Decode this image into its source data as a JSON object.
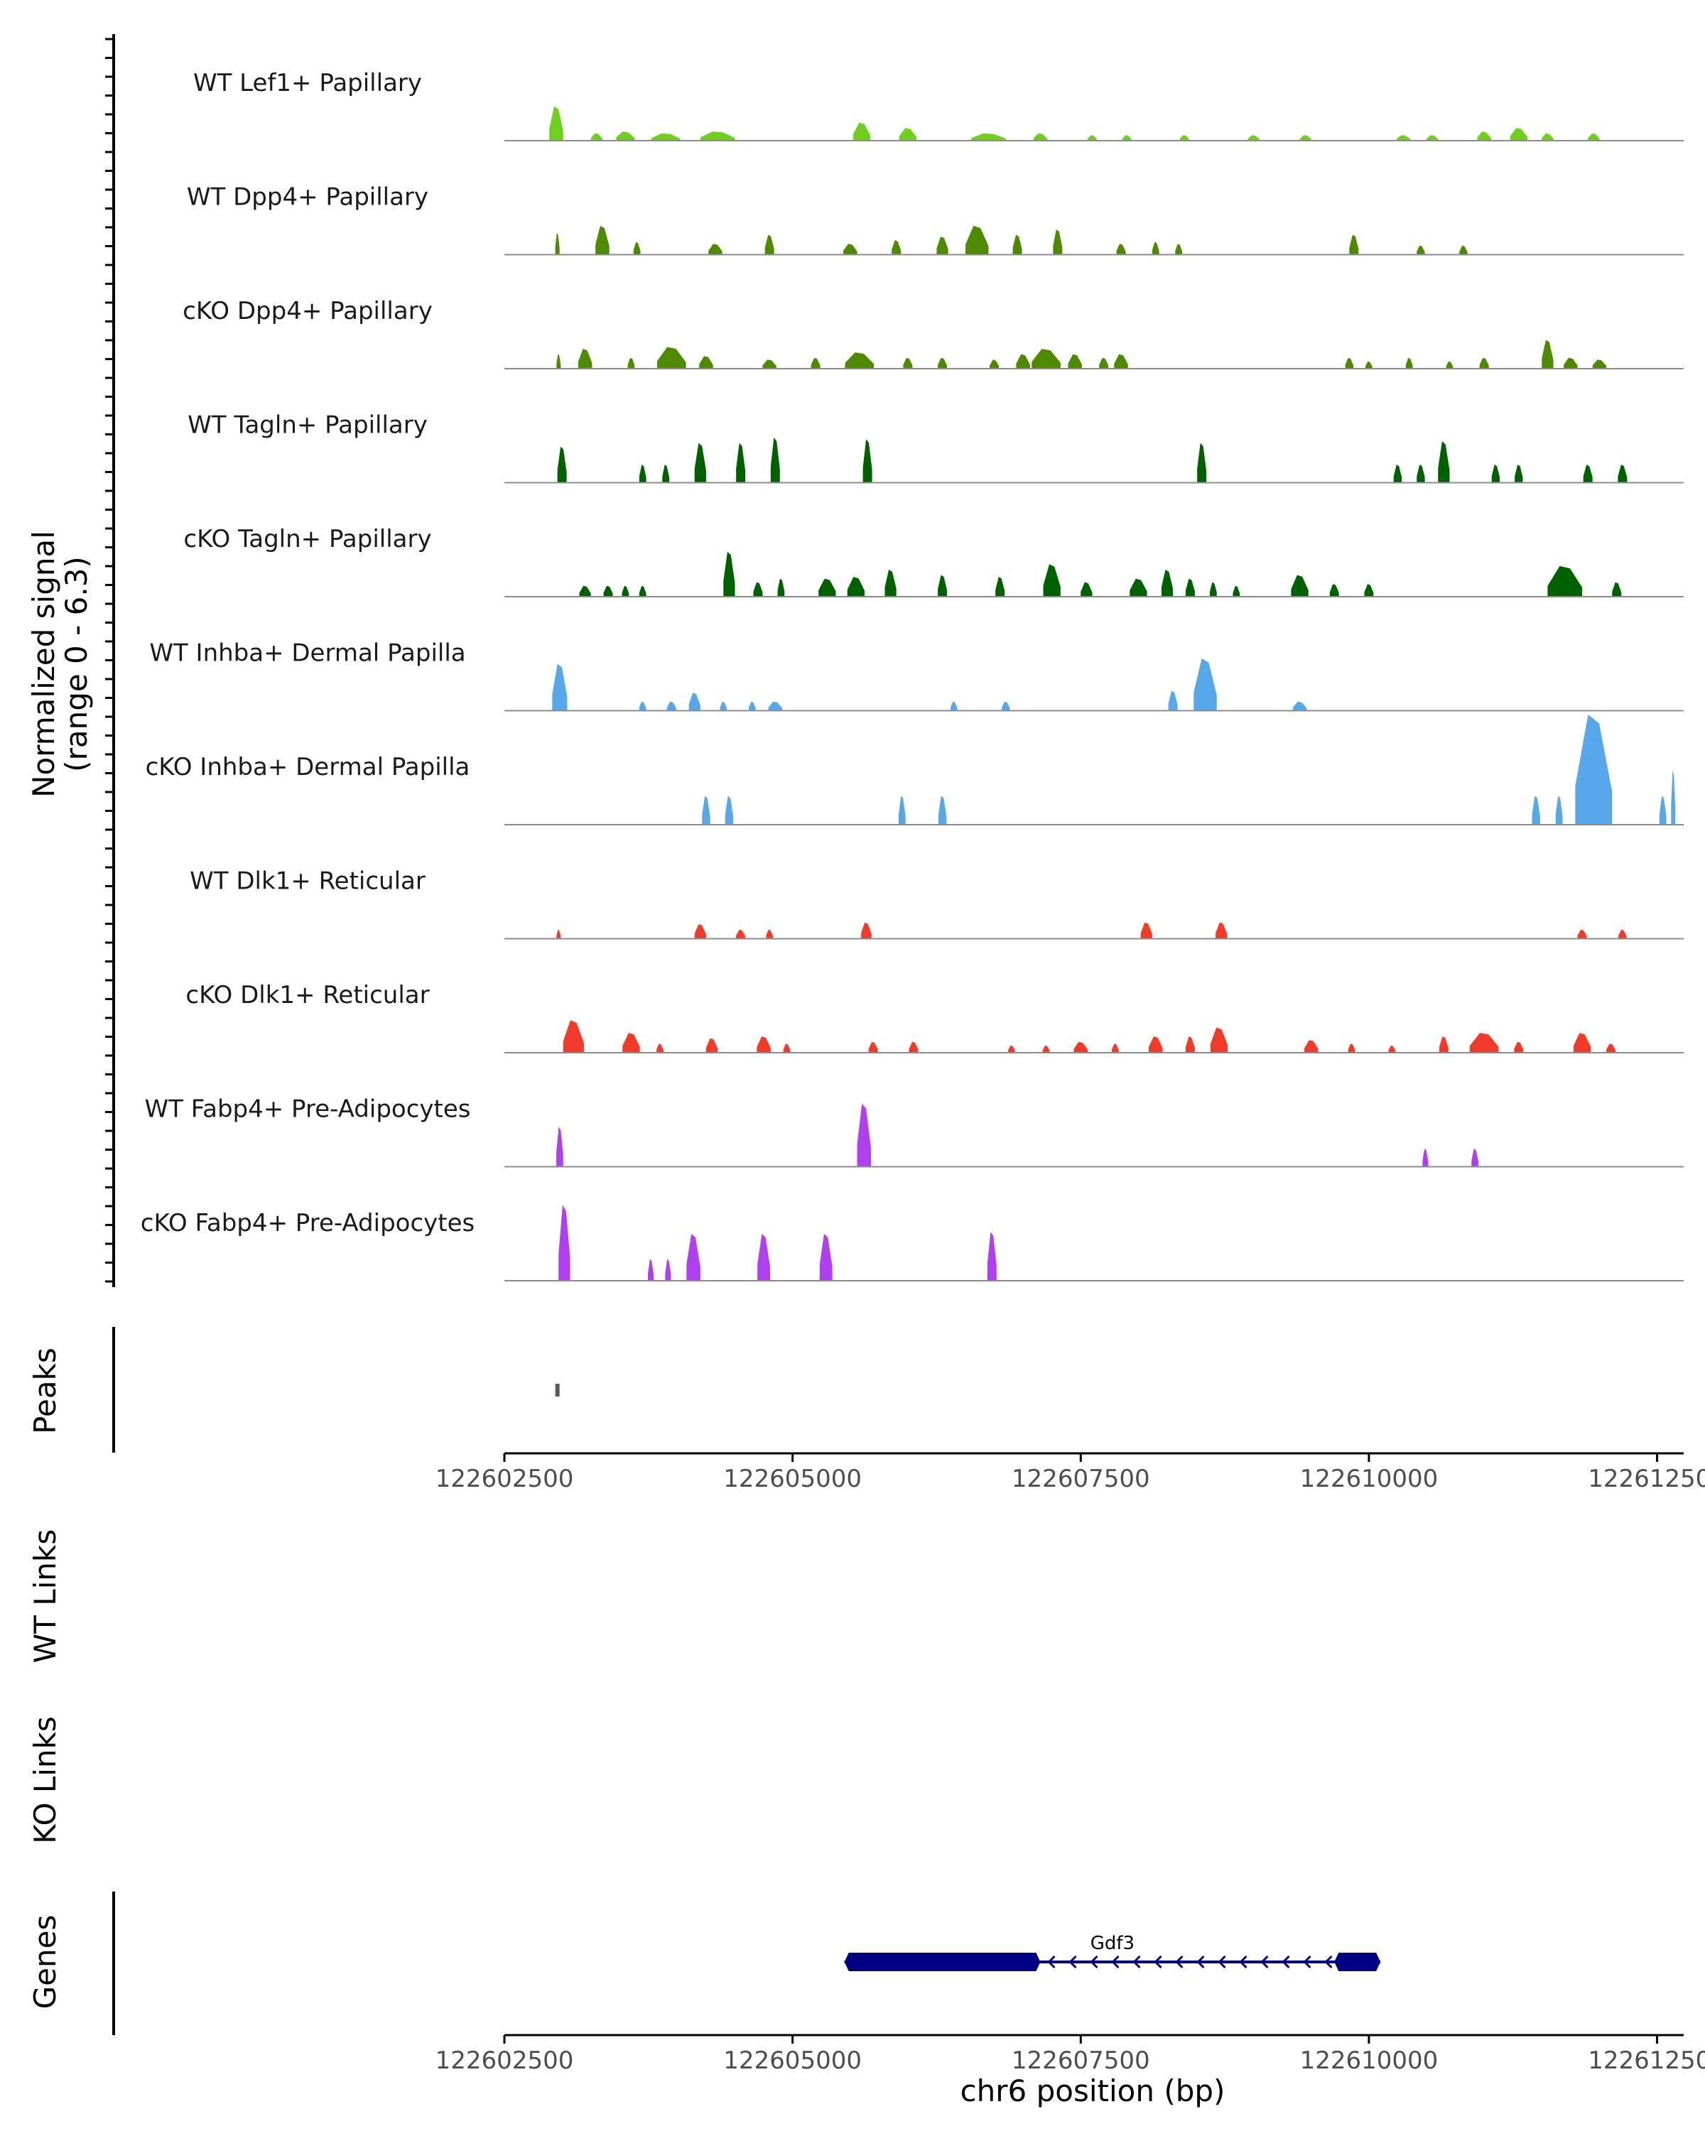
{
  "chart_data": {
    "type": "area",
    "title": "",
    "ylabel": "Normalized signal\n(range 0 - 6.3)",
    "ylim": [
      0,
      6.3
    ],
    "xlabel": "chr6 position (bp)",
    "xlim": [
      122602500,
      122612700
    ],
    "xticks": [
      122602500,
      122605000,
      122607500,
      122610000,
      122612500
    ],
    "xtick_labels": [
      "122602500",
      "122605000",
      "122607500",
      "122610000",
      "122612500"
    ],
    "sections": {
      "peaks": "Peaks",
      "wt_links": "WT Links",
      "ko_links": "KO Links",
      "genes": "Genes"
    },
    "series": [
      {
        "name": "WT Lef1+ Papillary",
        "color": "#6fcf1f",
        "peaks": [
          [
            122602950,
            120,
            1.9
          ],
          [
            122603300,
            100,
            0.4
          ],
          [
            122603550,
            160,
            0.5
          ],
          [
            122603900,
            250,
            0.4
          ],
          [
            122604350,
            300,
            0.5
          ],
          [
            122605600,
            150,
            1.0
          ],
          [
            122606000,
            150,
            0.7
          ],
          [
            122606700,
            300,
            0.4
          ],
          [
            122607150,
            120,
            0.4
          ],
          [
            122607600,
            80,
            0.3
          ],
          [
            122607900,
            80,
            0.3
          ],
          [
            122608400,
            80,
            0.3
          ],
          [
            122609000,
            100,
            0.3
          ],
          [
            122609450,
            100,
            0.3
          ],
          [
            122610300,
            120,
            0.3
          ],
          [
            122610550,
            100,
            0.3
          ],
          [
            122611000,
            120,
            0.5
          ],
          [
            122611300,
            150,
            0.7
          ],
          [
            122611550,
            100,
            0.4
          ],
          [
            122611950,
            100,
            0.4
          ]
        ]
      },
      {
        "name": "WT Dpp4+ Papillary",
        "color": "#4d8a00",
        "peaks": [
          [
            122602960,
            30,
            1.2
          ],
          [
            122603350,
            120,
            1.6
          ],
          [
            122603650,
            60,
            0.7
          ],
          [
            122604330,
            120,
            0.6
          ],
          [
            122604800,
            80,
            1.1
          ],
          [
            122605500,
            120,
            0.6
          ],
          [
            122605900,
            80,
            0.8
          ],
          [
            122606300,
            100,
            1.0
          ],
          [
            122606600,
            200,
            1.6
          ],
          [
            122606950,
            80,
            1.1
          ],
          [
            122607300,
            80,
            1.4
          ],
          [
            122607850,
            80,
            0.6
          ],
          [
            122608150,
            60,
            0.7
          ],
          [
            122608350,
            60,
            0.6
          ],
          [
            122609870,
            80,
            1.1
          ],
          [
            122610450,
            70,
            0.5
          ],
          [
            122610820,
            70,
            0.5
          ]
        ]
      },
      {
        "name": "cKO Dpp4+ Papillary",
        "color": "#4d8a00",
        "peaks": [
          [
            122602970,
            30,
            0.8
          ],
          [
            122603200,
            120,
            1.1
          ],
          [
            122603600,
            60,
            0.6
          ],
          [
            122603950,
            250,
            1.2
          ],
          [
            122604250,
            120,
            0.7
          ],
          [
            122604800,
            120,
            0.5
          ],
          [
            122605200,
            80,
            0.6
          ],
          [
            122605580,
            250,
            0.9
          ],
          [
            122606000,
            80,
            0.6
          ],
          [
            122606300,
            80,
            0.6
          ],
          [
            122606750,
            80,
            0.5
          ],
          [
            122607000,
            120,
            0.8
          ],
          [
            122607200,
            250,
            1.1
          ],
          [
            122607450,
            120,
            0.8
          ],
          [
            122607700,
            80,
            0.6
          ],
          [
            122607850,
            120,
            0.8
          ],
          [
            122609830,
            70,
            0.6
          ],
          [
            122610000,
            60,
            0.4
          ],
          [
            122610350,
            60,
            0.6
          ],
          [
            122610700,
            60,
            0.4
          ],
          [
            122611000,
            80,
            0.6
          ],
          [
            122611550,
            100,
            1.6
          ],
          [
            122611750,
            120,
            0.6
          ],
          [
            122612000,
            120,
            0.5
          ]
        ]
      },
      {
        "name": "WT Tagln+ Papillary",
        "color": "#006100",
        "peaks": [
          [
            122603000,
            80,
            2.0
          ],
          [
            122603700,
            60,
            1.0
          ],
          [
            122603900,
            60,
            1.0
          ],
          [
            122604200,
            100,
            2.2
          ],
          [
            122604550,
            80,
            2.2
          ],
          [
            122604850,
            80,
            2.5
          ],
          [
            122605650,
            80,
            2.4
          ],
          [
            122608550,
            80,
            2.2
          ],
          [
            122610250,
            70,
            1.0
          ],
          [
            122610450,
            70,
            1.0
          ],
          [
            122610650,
            100,
            2.3
          ],
          [
            122611100,
            70,
            1.0
          ],
          [
            122611300,
            70,
            1.0
          ],
          [
            122611900,
            80,
            1.0
          ],
          [
            122612200,
            80,
            1.0
          ]
        ]
      },
      {
        "name": "cKO Tagln+ Papillary",
        "color": "#006100",
        "peaks": [
          [
            122603200,
            100,
            0.6
          ],
          [
            122603400,
            80,
            0.6
          ],
          [
            122603550,
            60,
            0.6
          ],
          [
            122603700,
            60,
            0.6
          ],
          [
            122604450,
            100,
            2.5
          ],
          [
            122604700,
            80,
            0.8
          ],
          [
            122604900,
            60,
            1.0
          ],
          [
            122605300,
            150,
            1.0
          ],
          [
            122605550,
            150,
            1.1
          ],
          [
            122605850,
            100,
            1.5
          ],
          [
            122606300,
            80,
            1.2
          ],
          [
            122606800,
            80,
            1.1
          ],
          [
            122607250,
            150,
            1.8
          ],
          [
            122607550,
            100,
            0.8
          ],
          [
            122608000,
            150,
            1.0
          ],
          [
            122608250,
            100,
            1.5
          ],
          [
            122608450,
            80,
            1.0
          ],
          [
            122608650,
            60,
            0.8
          ],
          [
            122608850,
            60,
            0.6
          ],
          [
            122609400,
            150,
            1.2
          ],
          [
            122609700,
            80,
            0.7
          ],
          [
            122610000,
            80,
            0.7
          ],
          [
            122611700,
            300,
            1.7
          ],
          [
            122612150,
            80,
            0.8
          ]
        ]
      },
      {
        "name": "WT Inhba+ Dermal Papilla",
        "color": "#56a8ea",
        "peaks": [
          [
            122602980,
            130,
            2.6
          ],
          [
            122603700,
            60,
            0.5
          ],
          [
            122603950,
            80,
            0.5
          ],
          [
            122604150,
            100,
            1.0
          ],
          [
            122604400,
            60,
            0.5
          ],
          [
            122604650,
            60,
            0.5
          ],
          [
            122604850,
            120,
            0.5
          ],
          [
            122606400,
            60,
            0.5
          ],
          [
            122606850,
            70,
            0.5
          ],
          [
            122608300,
            80,
            1.1
          ],
          [
            122608580,
            200,
            2.9
          ],
          [
            122609400,
            120,
            0.5
          ]
        ]
      },
      {
        "name": "cKO Inhba+ Dermal Papilla",
        "color": "#56a8ea",
        "peaks": [
          [
            122604250,
            70,
            1.6
          ],
          [
            122604450,
            70,
            1.6
          ],
          [
            122605950,
            60,
            1.6
          ],
          [
            122606300,
            70,
            1.6
          ],
          [
            122611450,
            70,
            1.6
          ],
          [
            122611650,
            60,
            1.6
          ],
          [
            122611950,
            320,
            6.1
          ],
          [
            122612550,
            60,
            1.6
          ],
          [
            122612640,
            30,
            3.0
          ]
        ]
      },
      {
        "name": "WT Dlk1+ Reticular",
        "color": "#f03b2a",
        "peaks": [
          [
            122602970,
            30,
            0.5
          ],
          [
            122604200,
            100,
            0.8
          ],
          [
            122604550,
            80,
            0.5
          ],
          [
            122604800,
            60,
            0.5
          ],
          [
            122605640,
            90,
            0.9
          ],
          [
            122608070,
            100,
            0.9
          ],
          [
            122608720,
            100,
            0.9
          ],
          [
            122611850,
            80,
            0.5
          ],
          [
            122612200,
            70,
            0.5
          ]
        ]
      },
      {
        "name": "cKO Dlk1+ Reticular",
        "color": "#f03b2a",
        "peaks": [
          [
            122603100,
            180,
            1.8
          ],
          [
            122603600,
            150,
            1.1
          ],
          [
            122603850,
            60,
            0.5
          ],
          [
            122604300,
            100,
            0.8
          ],
          [
            122604750,
            120,
            0.9
          ],
          [
            122604950,
            60,
            0.5
          ],
          [
            122605700,
            80,
            0.6
          ],
          [
            122606050,
            80,
            0.6
          ],
          [
            122606900,
            60,
            0.4
          ],
          [
            122607200,
            60,
            0.4
          ],
          [
            122607500,
            120,
            0.6
          ],
          [
            122607800,
            60,
            0.5
          ],
          [
            122608150,
            120,
            0.9
          ],
          [
            122608450,
            80,
            0.9
          ],
          [
            122608700,
            150,
            1.4
          ],
          [
            122609500,
            120,
            0.7
          ],
          [
            122609850,
            60,
            0.5
          ],
          [
            122610200,
            60,
            0.4
          ],
          [
            122610650,
            80,
            0.9
          ],
          [
            122611000,
            250,
            1.1
          ],
          [
            122611300,
            80,
            0.6
          ],
          [
            122611850,
            150,
            1.1
          ],
          [
            122612100,
            80,
            0.5
          ]
        ]
      },
      {
        "name": "WT Fabp4+ Pre-Adipocytes",
        "color": "#b03fef",
        "peaks": [
          [
            122602980,
            60,
            2.2
          ],
          [
            122605620,
            120,
            3.5
          ],
          [
            122610490,
            50,
            1.0
          ],
          [
            122610920,
            60,
            1.0
          ]
        ]
      },
      {
        "name": "cKO Fabp4+ Pre-Adipocytes",
        "color": "#b03fef",
        "peaks": [
          [
            122603020,
            100,
            4.2
          ],
          [
            122603770,
            50,
            1.2
          ],
          [
            122603920,
            50,
            1.2
          ],
          [
            122604140,
            120,
            2.6
          ],
          [
            122604750,
            110,
            2.6
          ],
          [
            122605290,
            110,
            2.6
          ],
          [
            122606730,
            80,
            2.7
          ]
        ]
      }
    ],
    "peaks_track": [
      122602960
    ],
    "gene": {
      "name": "Gdf3",
      "strand": "-",
      "start": 122605450,
      "end": 122610100,
      "exons": [
        [
          122605450,
          122607150
        ],
        [
          122609700,
          122610100
        ]
      ]
    }
  }
}
